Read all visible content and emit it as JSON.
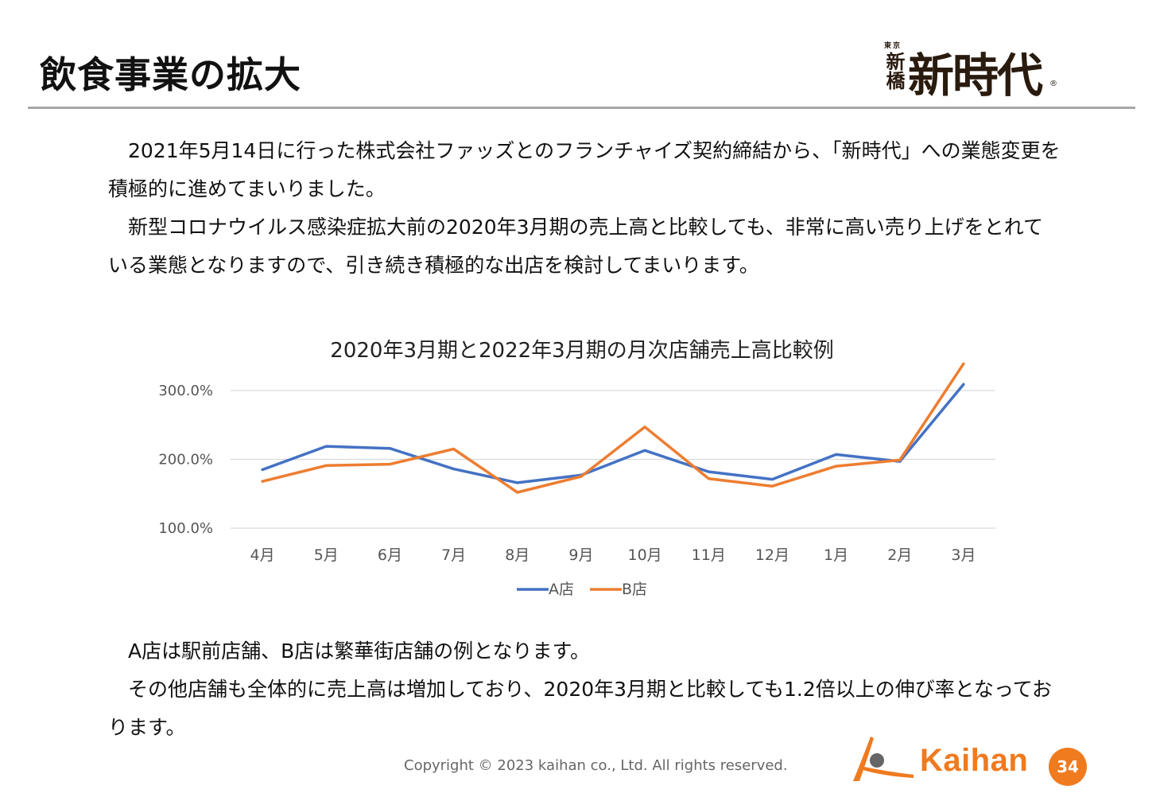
{
  "page": {
    "title": "飲食事業の拡大",
    "brand": {
      "small_top": "東京",
      "small_side": "新橋",
      "main": "新時代",
      "reg": "®"
    },
    "intro_paragraphs": [
      "2021年5月14日に行った株式会社ファッズとのフランチャイズ契約締結から、「新時代」への業態変更を積極的に進めてまいりました。",
      "新型コロナウイルス感染症拡大前の2020年3月期の売上高と比較しても、非常に高い売り上げをとれている業態となりますので、引き続き積極的な出店を検討してまいります。"
    ],
    "note_paragraphs": [
      "A店は駅前店舗、B店は繁華街店舗の例となります。",
      "その他店舗も全体的に売上高は増加しており、2020年3月期と比較しても1.2倍以上の伸び率となっております。"
    ],
    "copyright": "Copyright © 2023 kaihan co., Ltd. All rights reserved.",
    "footer_logo_text": "Kaihan",
    "page_number": "34"
  },
  "chart_data": {
    "type": "line",
    "title": "2020年3月期と2022年3月期の月次店舗売上高比較例",
    "categories": [
      "4月",
      "5月",
      "6月",
      "7月",
      "8月",
      "9月",
      "10月",
      "11月",
      "12月",
      "1月",
      "2月",
      "3月"
    ],
    "series": [
      {
        "name": "A店",
        "color": "#4472c4",
        "values": [
          185,
          219,
          216,
          186,
          166,
          177,
          213,
          182,
          171,
          207,
          197,
          309
        ]
      },
      {
        "name": "B店",
        "color": "#ed7d31",
        "values": [
          168,
          191,
          193,
          215,
          152,
          175,
          247,
          172,
          161,
          190,
          199,
          339
        ]
      }
    ],
    "y_ticks": [
      "100.0%",
      "200.0%",
      "300.0%"
    ],
    "ylim": [
      100,
      300
    ],
    "grid": true,
    "legend_position": "bottom"
  }
}
